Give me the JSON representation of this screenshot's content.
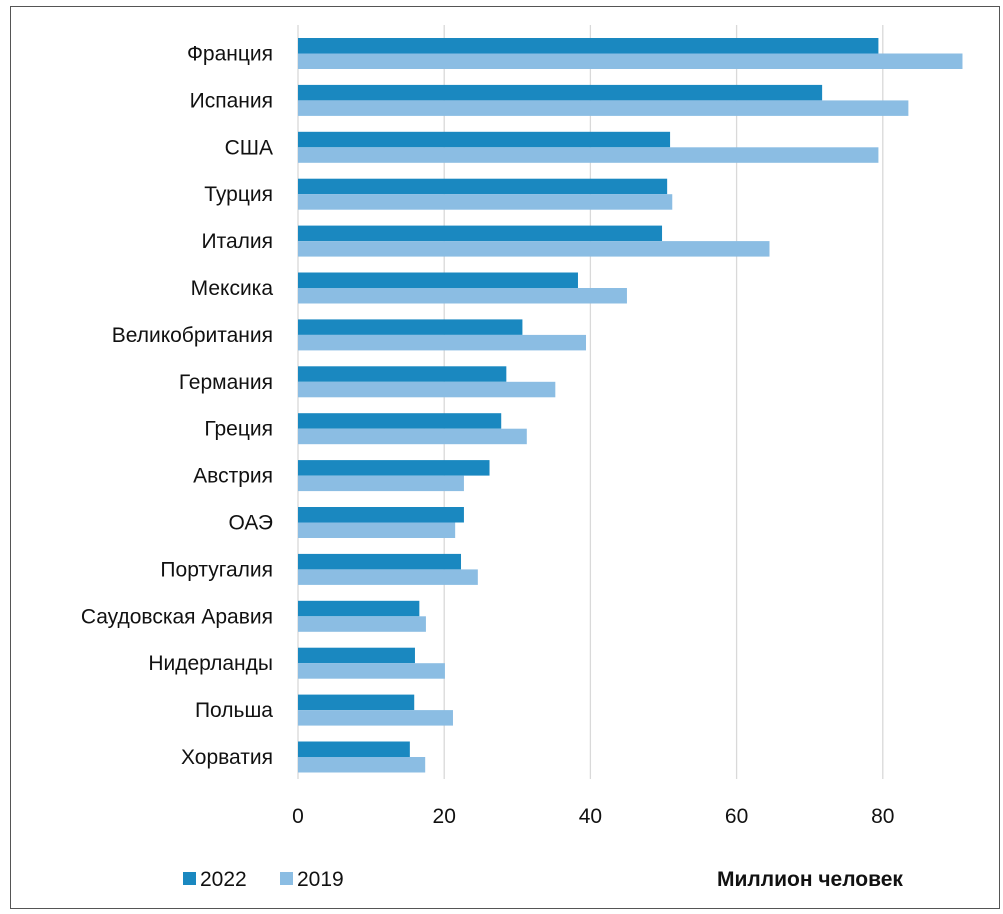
{
  "chart_data": {
    "type": "bar",
    "orientation": "horizontal",
    "title": "",
    "xlabel": "Миллион человек",
    "ylabel": "",
    "xlim": [
      0,
      90
    ],
    "xticks": [
      0,
      20,
      40,
      60,
      80
    ],
    "grid": true,
    "legend_position": "bottom-left",
    "categories": [
      "Франция",
      "Испания",
      "США",
      "Турция",
      "Италия",
      "Мексика",
      "Великобритания",
      "Германия",
      "Греция",
      "Австрия",
      "ОАЭ",
      "Португалия",
      "Саудовская Аравия",
      "Нидерланды",
      "Польша",
      "Хорватия"
    ],
    "series": [
      {
        "name": "2022",
        "color": "#1a88c0",
        "values": [
          79.4,
          71.7,
          50.9,
          50.5,
          49.8,
          38.3,
          30.7,
          28.5,
          27.8,
          26.2,
          22.7,
          22.3,
          16.6,
          16.0,
          15.9,
          15.3
        ]
      },
      {
        "name": "2019",
        "color": "#8bbde3",
        "values": [
          90.9,
          83.5,
          79.4,
          51.2,
          64.5,
          45.0,
          39.4,
          35.2,
          31.3,
          22.7,
          21.5,
          24.6,
          17.5,
          20.1,
          21.2,
          17.4
        ]
      }
    ]
  }
}
